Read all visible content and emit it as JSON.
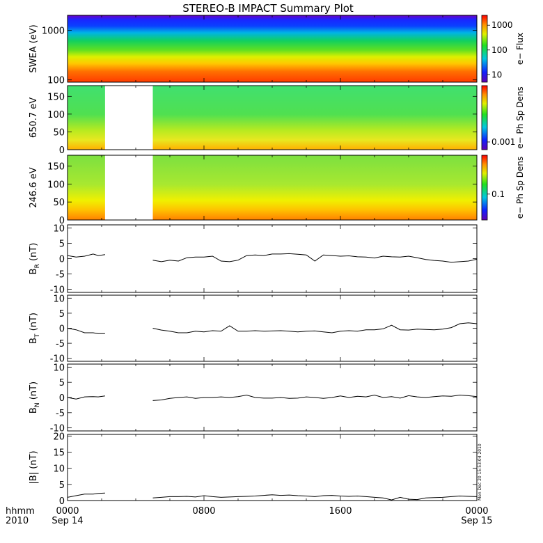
{
  "title": "STEREO-B IMPACT Summary Plot",
  "timestamp": "Mon Dec 20 15:53:04 2010",
  "time_axis": {
    "row1_labels": [
      "hhmm",
      "0000",
      "0800",
      "1600",
      "0000"
    ],
    "row2_labels": [
      "2010",
      "Sep 14",
      "Sep 15"
    ],
    "range_hours": [
      0,
      24
    ]
  },
  "chart_data": [
    {
      "type": "heatmap",
      "ylabel": "SWEA (eV)",
      "y_scale": "log",
      "ylim": [
        90,
        2000
      ],
      "yticks": [
        "1000",
        "100"
      ],
      "colorbar": {
        "label": "e− Flux",
        "scale": "log",
        "ticks": [
          "1000",
          "100",
          "10"
        ]
      },
      "gaps": []
    },
    {
      "type": "heatmap",
      "ylabel": "650.7 eV",
      "ylim": [
        0,
        180
      ],
      "yticks": [
        "0",
        "50",
        "100",
        "150"
      ],
      "colorbar": {
        "label": "e− Ph Sp Dens",
        "scale": "log",
        "ticks": [
          "0.001"
        ]
      },
      "gaps": [
        [
          2.2,
          5.0
        ]
      ]
    },
    {
      "type": "heatmap",
      "ylabel": "246.6 eV",
      "ylim": [
        0,
        180
      ],
      "yticks": [
        "0",
        "50",
        "100",
        "150"
      ],
      "colorbar": {
        "label": "e− Ph Sp Dens",
        "scale": "log",
        "ticks": [
          "0.1"
        ]
      },
      "gaps": [
        [
          2.2,
          5.0
        ]
      ]
    },
    {
      "type": "line",
      "ylabel": "B",
      "ylabel_sub": "R",
      "ylabel_unit": "(nT)",
      "ylim": [
        -11,
        11
      ],
      "yticks": [
        "10",
        "5",
        "0",
        "-5",
        "-10"
      ],
      "x": [
        0,
        0.5,
        1.0,
        1.5,
        1.8,
        2.2,
        5.0,
        5.5,
        6.0,
        6.5,
        7.0,
        7.5,
        8.0,
        8.5,
        9.0,
        9.5,
        10.0,
        10.5,
        11.0,
        11.5,
        12.0,
        12.5,
        13.0,
        13.5,
        14.0,
        14.5,
        15.0,
        15.5,
        16.0,
        16.5,
        17.0,
        17.5,
        18.0,
        18.5,
        19.0,
        19.5,
        20.0,
        20.5,
        21.0,
        21.5,
        22.0,
        22.5,
        23.0,
        23.5,
        24.0
      ],
      "y": [
        1.0,
        0.5,
        0.8,
        1.5,
        1.0,
        1.3,
        -0.5,
        -1.0,
        -0.5,
        -0.8,
        0.3,
        0.5,
        0.5,
        0.8,
        -0.8,
        -1.0,
        -0.5,
        1.0,
        1.2,
        1.0,
        1.5,
        1.5,
        1.6,
        1.4,
        1.2,
        -0.8,
        1.2,
        1.0,
        0.8,
        0.9,
        0.6,
        0.5,
        0.2,
        0.8,
        0.6,
        0.5,
        0.8,
        0.3,
        -0.3,
        -0.6,
        -0.8,
        -1.2,
        -1.0,
        -0.8,
        -0.2
      ],
      "gap_after_index": 5
    },
    {
      "type": "line",
      "ylabel": "B",
      "ylabel_sub": "T",
      "ylabel_unit": "(nT)",
      "ylim": [
        -11,
        11
      ],
      "yticks": [
        "10",
        "5",
        "0",
        "-5",
        "-10"
      ],
      "x": [
        0,
        0.5,
        1.0,
        1.5,
        1.8,
        2.2,
        5.0,
        5.5,
        6.0,
        6.5,
        7.0,
        7.5,
        8.0,
        8.5,
        9.0,
        9.5,
        10.0,
        10.5,
        11.0,
        11.5,
        12.0,
        12.5,
        13.0,
        13.5,
        14.0,
        14.5,
        15.0,
        15.5,
        16.0,
        16.5,
        17.0,
        17.5,
        18.0,
        18.5,
        19.0,
        19.5,
        20.0,
        20.5,
        21.0,
        21.5,
        22.0,
        22.5,
        23.0,
        23.5,
        24.0
      ],
      "y": [
        0.0,
        -0.5,
        -1.5,
        -1.5,
        -1.8,
        -1.8,
        0.0,
        -0.6,
        -1.0,
        -1.5,
        -1.5,
        -1.0,
        -1.2,
        -0.8,
        -1.0,
        0.8,
        -1.0,
        -1.0,
        -0.8,
        -1.0,
        -0.9,
        -0.8,
        -1.0,
        -1.2,
        -1.0,
        -0.9,
        -1.2,
        -1.5,
        -1.0,
        -0.8,
        -1.0,
        -0.5,
        -0.5,
        -0.2,
        1.0,
        -0.5,
        -0.6,
        -0.3,
        -0.4,
        -0.5,
        -0.3,
        0.2,
        1.5,
        1.8,
        1.5
      ],
      "gap_after_index": 5
    },
    {
      "type": "line",
      "ylabel": "B",
      "ylabel_sub": "N",
      "ylabel_unit": "(nT)",
      "ylim": [
        -11,
        11
      ],
      "yticks": [
        "10",
        "5",
        "0",
        "-5",
        "-10"
      ],
      "x": [
        0,
        0.5,
        1.0,
        1.5,
        1.8,
        2.2,
        5.0,
        5.5,
        6.0,
        6.5,
        7.0,
        7.5,
        8.0,
        8.5,
        9.0,
        9.5,
        10.0,
        10.5,
        11.0,
        11.5,
        12.0,
        12.5,
        13.0,
        13.5,
        14.0,
        14.5,
        15.0,
        15.5,
        16.0,
        16.5,
        17.0,
        17.5,
        18.0,
        18.5,
        19.0,
        19.5,
        20.0,
        20.5,
        21.0,
        21.5,
        22.0,
        22.5,
        23.0,
        23.5,
        24.0
      ],
      "y": [
        0.0,
        -0.5,
        0.2,
        0.3,
        0.2,
        0.5,
        -1.0,
        -0.8,
        -0.3,
        0.0,
        0.2,
        -0.3,
        0.0,
        0.0,
        0.2,
        0.0,
        0.3,
        0.8,
        0.0,
        -0.2,
        -0.2,
        0.0,
        -0.3,
        -0.2,
        0.2,
        0.0,
        -0.3,
        0.0,
        0.5,
        0.0,
        0.4,
        0.2,
        0.8,
        0.0,
        0.3,
        -0.2,
        0.6,
        0.2,
        0.0,
        0.3,
        0.5,
        0.4,
        0.8,
        0.6,
        0.3
      ],
      "gap_after_index": 5
    },
    {
      "type": "line",
      "ylabel": "|B|",
      "ylabel_sub": "",
      "ylabel_unit": "(nT)",
      "ylim": [
        0,
        20.5
      ],
      "yticks": [
        "20",
        "15",
        "10",
        "5",
        "0"
      ],
      "x": [
        0,
        0.5,
        1.0,
        1.5,
        1.8,
        2.2,
        5.0,
        5.5,
        6.0,
        6.5,
        7.0,
        7.5,
        8.0,
        8.5,
        9.0,
        9.5,
        10.0,
        10.5,
        11.0,
        11.5,
        12.0,
        12.5,
        13.0,
        13.5,
        14.0,
        14.5,
        15.0,
        15.5,
        16.0,
        16.5,
        17.0,
        17.5,
        18.0,
        18.5,
        19.0,
        19.5,
        20.0,
        20.5,
        21.0,
        21.5,
        22.0,
        22.5,
        23.0,
        23.5,
        24.0
      ],
      "y": [
        1.0,
        1.5,
        2.0,
        2.0,
        2.2,
        2.3,
        0.8,
        1.0,
        1.2,
        1.2,
        1.3,
        1.1,
        1.5,
        1.2,
        1.0,
        1.1,
        1.2,
        1.3,
        1.4,
        1.6,
        1.8,
        1.6,
        1.7,
        1.5,
        1.4,
        1.2,
        1.5,
        1.6,
        1.4,
        1.3,
        1.4,
        1.2,
        1.0,
        0.8,
        0.2,
        1.0,
        0.4,
        0.3,
        0.8,
        0.9,
        1.0,
        1.2,
        1.4,
        1.3,
        1.2
      ],
      "gap_after_index": 5
    }
  ]
}
